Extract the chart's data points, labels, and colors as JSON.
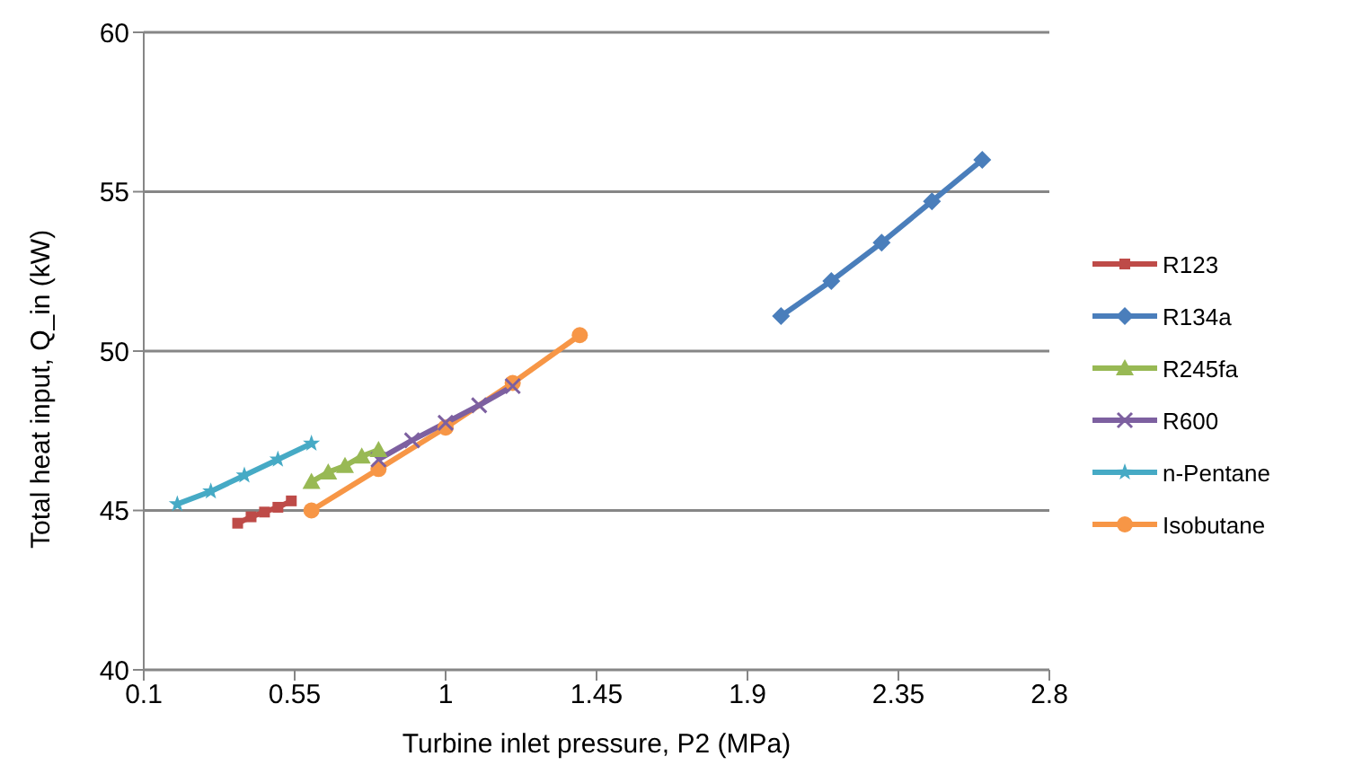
{
  "chart_data": {
    "type": "line",
    "xlabel": "Turbine inlet pressure, P2 (MPa)",
    "ylabel": "Total heat input, Q_in (kW)",
    "xlim": [
      0.1,
      2.8
    ],
    "xticks": [
      0.1,
      0.55,
      1,
      1.45,
      1.9,
      2.35,
      2.8
    ],
    "ylim": [
      40,
      60
    ],
    "yticks": [
      40,
      45,
      50,
      55,
      60
    ],
    "grid": "y",
    "legend": "right",
    "line_style": "solid",
    "series": [
      {
        "name": "R123",
        "color": "#be4b48",
        "marker": "square",
        "x": [
          0.38,
          0.42,
          0.46,
          0.5,
          0.54
        ],
        "values": [
          44.6,
          44.8,
          44.95,
          45.1,
          45.3
        ]
      },
      {
        "name": "R134a",
        "color": "#4a7ebb",
        "marker": "diamond",
        "x": [
          2.0,
          2.15,
          2.3,
          2.45,
          2.6
        ],
        "values": [
          51.1,
          52.2,
          53.4,
          54.7,
          56.0
        ]
      },
      {
        "name": "R245fa",
        "color": "#98b954",
        "marker": "triangle",
        "x": [
          0.6,
          0.65,
          0.7,
          0.75,
          0.8
        ],
        "values": [
          45.9,
          46.2,
          46.4,
          46.7,
          46.9
        ]
      },
      {
        "name": "R600",
        "color": "#7d60a0",
        "marker": "cross",
        "x": [
          0.8,
          0.9,
          1.0,
          1.1,
          1.2
        ],
        "values": [
          46.6,
          47.2,
          47.75,
          48.3,
          48.9
        ]
      },
      {
        "name": "n-Pentane",
        "color": "#46aac5",
        "marker": "star",
        "x": [
          0.2,
          0.3,
          0.4,
          0.5,
          0.6
        ],
        "values": [
          45.2,
          45.6,
          46.1,
          46.6,
          47.1
        ]
      },
      {
        "name": "Isobutane",
        "color": "#f79646",
        "marker": "circle",
        "x": [
          0.6,
          0.8,
          1.0,
          1.2,
          1.4
        ],
        "values": [
          45.0,
          46.3,
          47.6,
          49.0,
          50.5
        ]
      }
    ]
  }
}
